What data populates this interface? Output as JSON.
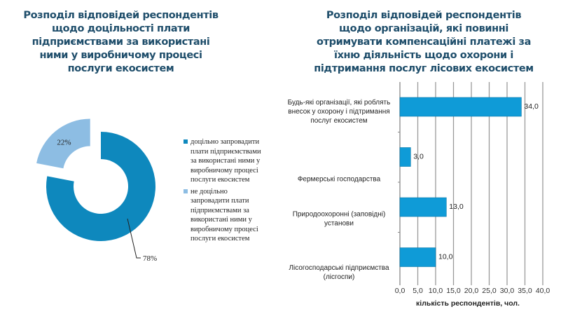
{
  "chart_data": [
    {
      "type": "pie",
      "variant": "donut",
      "title": "Розподіл відповідей респондентів щодо доцільності плати підприємствами за використані ними у виробничому процесі послуги екосистем",
      "slices": [
        {
          "label": "доцільно запровадити плати підприємствами за використані ними у виробничому процесі послуги екосистем",
          "value": 78,
          "data_label": "78%",
          "color": "#0e88bd"
        },
        {
          "label": "не доцільно запровадити плати підприємствами за використані ними у виробничому процесі послуги екосистем",
          "value": 22,
          "data_label": "22%",
          "color": "#8dbde3",
          "exploded": true
        }
      ],
      "legend_position": "right"
    },
    {
      "type": "bar",
      "orientation": "horizontal",
      "title": "Розподіл відповідей респондентів щодо організацій, які повинні отримувати компенсаційні платежі за їхню діяльність щодо охорони і підтримання послуг лісових екосистем",
      "categories": [
        "Будь-які організації, які  роблять внесок у  охорону  і підтримання послуг екосистем",
        "Фермерські господарства",
        "Природоохоронні (заповідні) установи",
        "Лісогосподарські підприємства (лісгоспи)"
      ],
      "values": [
        34,
        3,
        13,
        10
      ],
      "data_labels": [
        "34,0",
        "3,0",
        "13,0",
        "10,0"
      ],
      "xlabel": "кількість респондентів, чол.",
      "xlim": [
        0,
        40
      ],
      "xticks": [
        "0,0",
        "5,0",
        "10,0",
        "15,0",
        "20,0",
        "25,0",
        "30,0",
        "35,0",
        "40,0"
      ],
      "grid": "vertical",
      "bar_color": "#0f9bd7"
    }
  ]
}
